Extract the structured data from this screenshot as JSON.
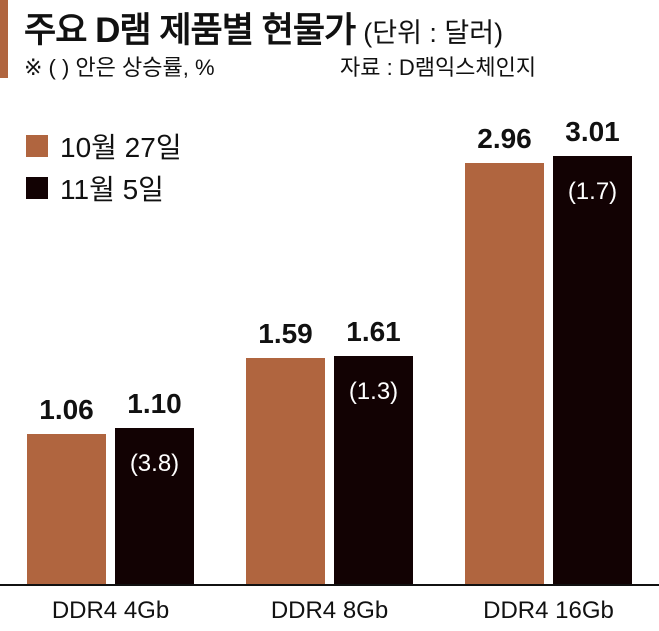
{
  "header": {
    "title": "주요 D램 제품별 현물가",
    "unit": "(단위 : 달러)",
    "note": "※ (  ) 안은 상승률, %",
    "source": "자료 : D램익스체인지"
  },
  "colors": {
    "accent": "#b0653f",
    "series1": "#b0653f",
    "series2": "#120203"
  },
  "legend": [
    {
      "label": "10월 27일",
      "color": "#b0653f"
    },
    {
      "label": "11월 5일",
      "color": "#120203"
    }
  ],
  "chart_data": {
    "type": "bar",
    "title": "주요 D램 제품별 현물가",
    "subtitle": "(단위 : 달러)",
    "note": "※ ( ) 안은 상승률, %",
    "source": "자료 : D램익스체인지",
    "xlabel": "",
    "ylabel": "달러",
    "categories": [
      "DDR4 4Gb",
      "DDR4 8Gb",
      "DDR4 16Gb"
    ],
    "series": [
      {
        "name": "10월 27일",
        "values": [
          1.06,
          1.59,
          2.96
        ],
        "labels": [
          "1.06",
          "1.59",
          "2.96"
        ]
      },
      {
        "name": "11월 5일",
        "values": [
          1.1,
          1.61,
          3.01
        ],
        "labels": [
          "1.10",
          "1.61",
          "3.01"
        ],
        "change_pct": [
          3.8,
          1.3,
          1.7
        ],
        "change_labels": [
          "(3.8)",
          "(1.3)",
          "(1.7)"
        ]
      }
    ],
    "ylim": [
      0,
      3.01
    ],
    "grid": false,
    "legend_position": "top-left"
  }
}
